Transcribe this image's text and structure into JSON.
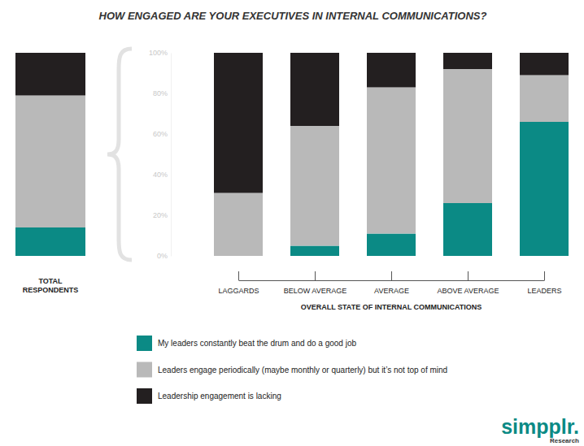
{
  "chart_data": {
    "type": "bar",
    "title": "HOW ENGAGED ARE YOUR EXECUTIVES IN INTERNAL COMMUNICATIONS?",
    "xlabel": "OVERALL STATE OF INTERNAL COMMUNICATIONS",
    "categories": [
      "TOTAL RESPONDENTS",
      "LAGGARDS",
      "BELOW AVERAGE",
      "AVERAGE",
      "ABOVE AVERAGE",
      "LEADERS"
    ],
    "series": [
      {
        "name": "My leaders constantly beat the drum and do a good job",
        "color": "#0b8a85",
        "values": [
          14,
          0,
          5,
          11,
          26,
          66
        ]
      },
      {
        "name": "Leaders engage periodically (maybe monthly or quarterly) but it’s not top of mind",
        "color": "#b9b9b9",
        "values": [
          65,
          31,
          59,
          72,
          66,
          23
        ]
      },
      {
        "name": "Leadership engagement is lacking",
        "color": "#231f20",
        "values": [
          21,
          69,
          36,
          17,
          8,
          11
        ]
      }
    ],
    "ylim": [
      0,
      100
    ],
    "yticks": [
      {
        "value": 0,
        "label": "0%"
      },
      {
        "value": 20,
        "label": "20%"
      },
      {
        "value": 40,
        "label": "40%"
      },
      {
        "value": 60,
        "label": "60%"
      },
      {
        "value": 80,
        "label": "80%"
      },
      {
        "value": 100,
        "label": "100%"
      }
    ],
    "stacked": true,
    "legend": "bottom",
    "annotations": [
      "simpplr.",
      "Research"
    ]
  }
}
